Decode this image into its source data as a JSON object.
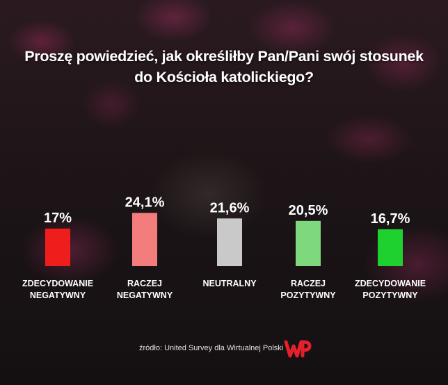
{
  "title": {
    "line1": "Proszę powiedzieć, jak określiłby Pan/Pani swój stosunek",
    "line2": "do Kościoła katolickiego?"
  },
  "chart_data": {
    "type": "bar",
    "title": "Proszę powiedzieć, jak określiłby Pan/Pani swój stosunek do Kościoła katolickiego?",
    "xlabel": "",
    "ylabel": "",
    "ylim": [
      0,
      30
    ],
    "categories": [
      [
        "ZDECYDOWANIE",
        "NEGATYWNY"
      ],
      [
        "RACZEJ",
        "NEGATYWNY"
      ],
      [
        "NEUTRALNY"
      ],
      [
        "RACZEJ",
        "POZYTYWNY"
      ],
      [
        "ZDECYDOWANIE",
        "POZYTYWNY"
      ]
    ],
    "values": [
      17,
      24.1,
      21.6,
      20.5,
      16.7
    ],
    "value_labels": [
      "17%",
      "24,1%",
      "21,6%",
      "20,5%",
      "16,7%"
    ],
    "colors": [
      "#f01d1d",
      "#f37c7c",
      "#c9c9c9",
      "#7ed87e",
      "#1fd12f"
    ],
    "grid": false,
    "legend": "none"
  },
  "footer": {
    "source": "źródło: United Survey dla Wirtualnej Polski",
    "logo_icon": "wp-logo-icon"
  }
}
